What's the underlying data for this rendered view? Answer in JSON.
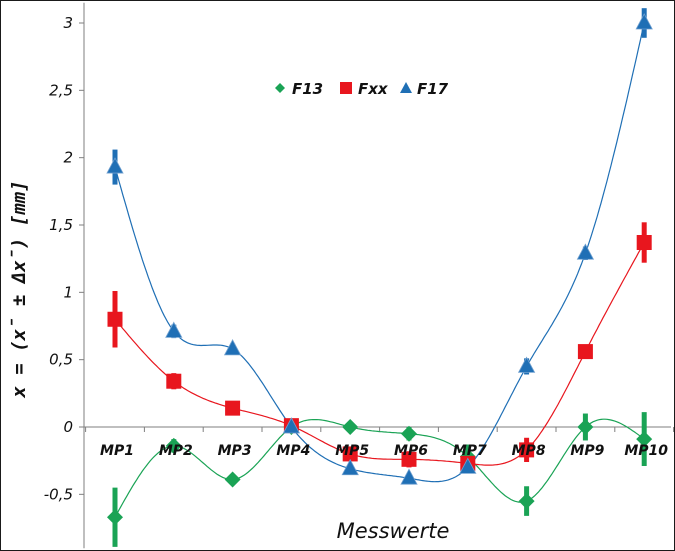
{
  "chart_data": {
    "type": "scatter",
    "xlabel": "Messwerte",
    "ylabel": "x = (x̄ ± Δx̄) [mm]",
    "categories": [
      "MP1",
      "MP2",
      "MP3",
      "MP4",
      "MP5",
      "MP6",
      "MP7",
      "MP8",
      "MP9",
      "MP10"
    ],
    "y_ticks": [
      "-0,5",
      "0",
      "0,5",
      "1",
      "1,5",
      "2",
      "2,5",
      "3"
    ],
    "ylim": [
      -0.9,
      3.15
    ],
    "grid": false,
    "legend_position": "top-center",
    "trendline": "polynomial",
    "series": [
      {
        "name": "F13",
        "color": "#1aa355",
        "marker": "diamond",
        "values": [
          -0.67,
          -0.14,
          -0.39,
          0.0,
          0.0,
          -0.05,
          -0.22,
          -0.55,
          0.0,
          -0.09
        ],
        "errors": [
          0.22,
          0.05,
          0.03,
          0.03,
          0.03,
          0.05,
          0.09,
          0.11,
          0.1,
          0.2
        ]
      },
      {
        "name": "Fxx",
        "color": "#e8161e",
        "marker": "square",
        "values": [
          0.8,
          0.34,
          0.14,
          0.01,
          -0.2,
          -0.24,
          -0.27,
          -0.17,
          0.56,
          1.37
        ],
        "errors": [
          0.21,
          0.06,
          0.03,
          0.03,
          0.05,
          0.06,
          0.06,
          0.09,
          0.05,
          0.15
        ]
      },
      {
        "name": "F17",
        "color": "#1f6fb5",
        "marker": "triangle",
        "values": [
          1.93,
          0.71,
          0.58,
          0.0,
          -0.31,
          -0.38,
          -0.3,
          0.45,
          1.29,
          3.0
        ],
        "errors": [
          0.13,
          0.05,
          0.04,
          0.02,
          0.03,
          0.03,
          0.03,
          0.06,
          0.05,
          0.11
        ]
      }
    ]
  }
}
